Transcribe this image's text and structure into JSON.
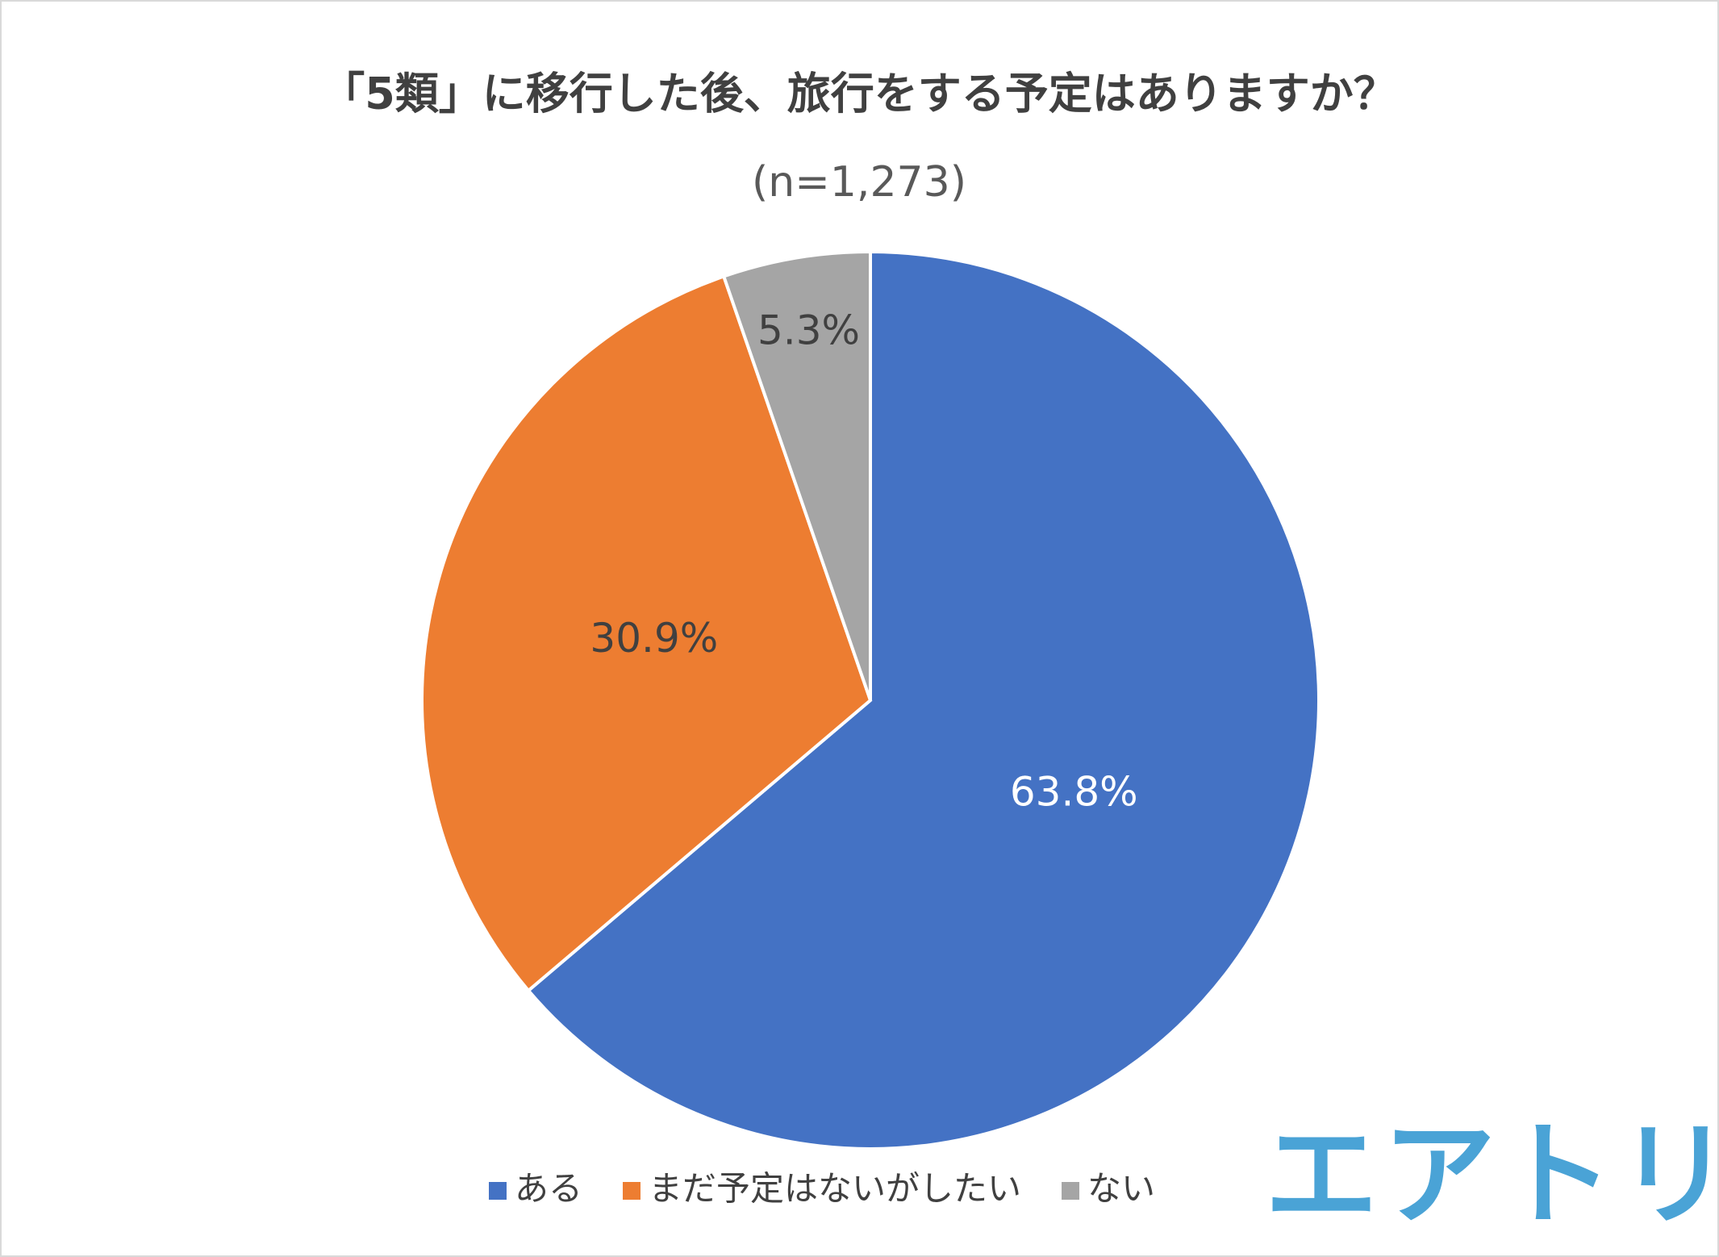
{
  "chart_data": {
    "type": "pie",
    "title": "「5類」に移行した後、旅行をする予定はありますか？",
    "subtitle": "(n=1,273)",
    "categories": [
      "ある",
      "まだ予定はないがしたい",
      "ない"
    ],
    "values": [
      63.8,
      30.9,
      5.3
    ],
    "value_labels": [
      "63.8%",
      "30.9%",
      "5.3%"
    ],
    "colors": [
      "#4472c4",
      "#ed7d31",
      "#a5a5a5"
    ],
    "legend": "bottom"
  },
  "logo": "エアトリ"
}
